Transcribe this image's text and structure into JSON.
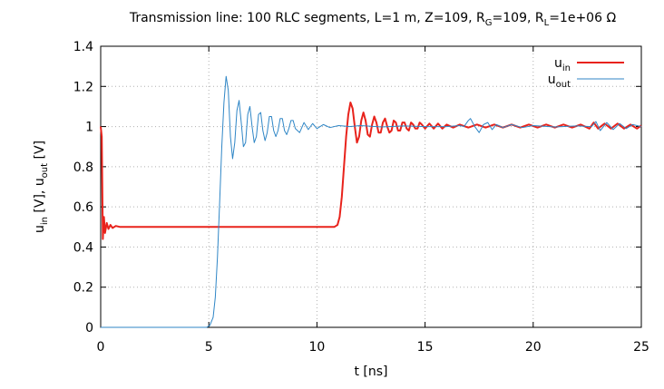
{
  "chart_data": {
    "type": "line",
    "title": {
      "prefix": "Transmission line: 100 RLC segments, L=1 m, Z=109, R",
      "rg_sub": "G",
      "mid": "=109, R",
      "rl_sub": "L",
      "suffix": "=1e+06 Ω"
    },
    "xlabel": "t [ns]",
    "ylabel": {
      "p1": "u",
      "s1": "in",
      "p2": " [V], u",
      "s2": "out",
      "p3": " [V]"
    },
    "xlim": [
      0,
      25
    ],
    "ylim": [
      0,
      1.4
    ],
    "x_ticks": [
      "0",
      "5",
      "10",
      "15",
      "20",
      "25"
    ],
    "y_ticks": [
      "0",
      "0.2",
      "0.4",
      "0.6",
      "0.8",
      "1",
      "1.2",
      "1.4"
    ],
    "grid": true,
    "legend_position": "top-right",
    "series": [
      {
        "name": "u",
        "name_sub": "in",
        "color": "#e8231c",
        "points": [
          [
            0.0,
            1.0
          ],
          [
            0.05,
            0.95
          ],
          [
            0.1,
            0.44
          ],
          [
            0.15,
            0.55
          ],
          [
            0.2,
            0.47
          ],
          [
            0.28,
            0.52
          ],
          [
            0.36,
            0.49
          ],
          [
            0.45,
            0.51
          ],
          [
            0.55,
            0.495
          ],
          [
            0.7,
            0.505
          ],
          [
            0.9,
            0.5
          ],
          [
            10.8,
            0.5
          ],
          [
            10.95,
            0.51
          ],
          [
            11.05,
            0.55
          ],
          [
            11.15,
            0.65
          ],
          [
            11.25,
            0.8
          ],
          [
            11.35,
            0.95
          ],
          [
            11.45,
            1.06
          ],
          [
            11.55,
            1.12
          ],
          [
            11.65,
            1.09
          ],
          [
            11.75,
            1.0
          ],
          [
            11.85,
            0.92
          ],
          [
            11.95,
            0.95
          ],
          [
            12.05,
            1.03
          ],
          [
            12.15,
            1.07
          ],
          [
            12.25,
            1.03
          ],
          [
            12.35,
            0.96
          ],
          [
            12.45,
            0.95
          ],
          [
            12.55,
            1.01
          ],
          [
            12.65,
            1.05
          ],
          [
            12.75,
            1.02
          ],
          [
            12.85,
            0.97
          ],
          [
            12.95,
            0.97
          ],
          [
            13.05,
            1.02
          ],
          [
            13.15,
            1.04
          ],
          [
            13.25,
            1.0
          ],
          [
            13.35,
            0.97
          ],
          [
            13.45,
            0.98
          ],
          [
            13.55,
            1.03
          ],
          [
            13.65,
            1.02
          ],
          [
            13.75,
            0.98
          ],
          [
            13.85,
            0.98
          ],
          [
            13.95,
            1.02
          ],
          [
            14.05,
            1.02
          ],
          [
            14.15,
            0.99
          ],
          [
            14.25,
            0.98
          ],
          [
            14.35,
            1.02
          ],
          [
            14.45,
            1.01
          ],
          [
            14.55,
            0.99
          ],
          [
            14.65,
            0.99
          ],
          [
            14.75,
            1.02
          ],
          [
            14.85,
            1.01
          ],
          [
            15.0,
            0.99
          ],
          [
            15.2,
            1.015
          ],
          [
            15.4,
            0.99
          ],
          [
            15.6,
            1.015
          ],
          [
            15.8,
            0.99
          ],
          [
            16.0,
            1.01
          ],
          [
            16.3,
            0.995
          ],
          [
            16.6,
            1.01
          ],
          [
            17.0,
            0.995
          ],
          [
            17.4,
            1.01
          ],
          [
            17.8,
            0.995
          ],
          [
            18.2,
            1.01
          ],
          [
            18.6,
            0.995
          ],
          [
            19.0,
            1.01
          ],
          [
            19.4,
            0.995
          ],
          [
            19.8,
            1.01
          ],
          [
            20.2,
            0.995
          ],
          [
            20.6,
            1.01
          ],
          [
            21.0,
            0.995
          ],
          [
            21.4,
            1.01
          ],
          [
            21.8,
            0.995
          ],
          [
            22.2,
            1.01
          ],
          [
            22.6,
            0.99
          ],
          [
            22.8,
            1.02
          ],
          [
            23.0,
            0.99
          ],
          [
            23.3,
            1.015
          ],
          [
            23.6,
            0.99
          ],
          [
            23.9,
            1.015
          ],
          [
            24.2,
            0.99
          ],
          [
            24.5,
            1.01
          ],
          [
            24.8,
            0.99
          ],
          [
            25.0,
            1.005
          ]
        ]
      },
      {
        "name": "u",
        "name_sub": "out",
        "color": "#2f86c6",
        "points": [
          [
            0.0,
            0.0
          ],
          [
            4.9,
            0.0
          ],
          [
            5.05,
            0.01
          ],
          [
            5.2,
            0.05
          ],
          [
            5.3,
            0.15
          ],
          [
            5.4,
            0.35
          ],
          [
            5.5,
            0.62
          ],
          [
            5.6,
            0.9
          ],
          [
            5.7,
            1.12
          ],
          [
            5.8,
            1.25
          ],
          [
            5.9,
            1.18
          ],
          [
            6.0,
            0.95
          ],
          [
            6.1,
            0.84
          ],
          [
            6.2,
            0.92
          ],
          [
            6.3,
            1.08
          ],
          [
            6.4,
            1.13
          ],
          [
            6.5,
            1.02
          ],
          [
            6.6,
            0.9
          ],
          [
            6.7,
            0.92
          ],
          [
            6.8,
            1.06
          ],
          [
            6.9,
            1.1
          ],
          [
            7.0,
            1.0
          ],
          [
            7.1,
            0.92
          ],
          [
            7.2,
            0.95
          ],
          [
            7.3,
            1.06
          ],
          [
            7.4,
            1.07
          ],
          [
            7.5,
            0.98
          ],
          [
            7.6,
            0.93
          ],
          [
            7.7,
            0.97
          ],
          [
            7.8,
            1.05
          ],
          [
            7.9,
            1.05
          ],
          [
            8.0,
            0.98
          ],
          [
            8.1,
            0.95
          ],
          [
            8.2,
            0.98
          ],
          [
            8.3,
            1.04
          ],
          [
            8.4,
            1.04
          ],
          [
            8.5,
            0.98
          ],
          [
            8.6,
            0.96
          ],
          [
            8.7,
            0.99
          ],
          [
            8.8,
            1.03
          ],
          [
            8.9,
            1.03
          ],
          [
            9.0,
            0.99
          ],
          [
            9.2,
            0.97
          ],
          [
            9.4,
            1.02
          ],
          [
            9.6,
            0.985
          ],
          [
            9.8,
            1.015
          ],
          [
            10.0,
            0.99
          ],
          [
            10.3,
            1.01
          ],
          [
            10.6,
            0.995
          ],
          [
            11.0,
            1.005
          ],
          [
            11.5,
            1.0
          ],
          [
            12.0,
            1.005
          ],
          [
            13.0,
            0.998
          ],
          [
            14.0,
            1.003
          ],
          [
            15.0,
            1.0
          ],
          [
            16.0,
            1.0
          ],
          [
            16.6,
            1.005
          ],
          [
            16.8,
            1.0
          ],
          [
            17.0,
            1.03
          ],
          [
            17.1,
            1.04
          ],
          [
            17.3,
            1.0
          ],
          [
            17.5,
            0.97
          ],
          [
            17.7,
            1.01
          ],
          [
            17.9,
            1.02
          ],
          [
            18.1,
            0.985
          ],
          [
            18.3,
            1.01
          ],
          [
            18.6,
            0.995
          ],
          [
            19.0,
            1.01
          ],
          [
            19.5,
            0.995
          ],
          [
            20.0,
            1.005
          ],
          [
            21.0,
            0.998
          ],
          [
            22.0,
            1.003
          ],
          [
            22.7,
            1.0
          ],
          [
            22.9,
            1.025
          ],
          [
            23.1,
            0.98
          ],
          [
            23.4,
            1.02
          ],
          [
            23.7,
            0.985
          ],
          [
            24.0,
            1.015
          ],
          [
            24.3,
            0.99
          ],
          [
            24.6,
            1.01
          ],
          [
            25.0,
            1.0
          ]
        ]
      }
    ]
  }
}
